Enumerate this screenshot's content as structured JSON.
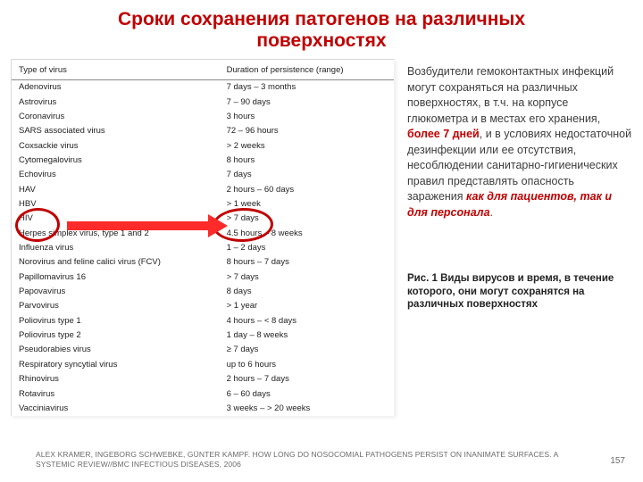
{
  "title": "Сроки сохранения патогенов на различных поверхностях",
  "table": {
    "headers": [
      "Type of virus",
      "Duration of persistence (range)"
    ],
    "rows": [
      [
        "Adenovirus",
        "7 days – 3 months"
      ],
      [
        "Astrovirus",
        "7 – 90 days"
      ],
      [
        "Coronavirus",
        "3 hours"
      ],
      [
        "SARS associated virus",
        "72 – 96 hours"
      ],
      [
        "Coxsackie virus",
        "> 2 weeks"
      ],
      [
        "Cytomegalovirus",
        "8 hours"
      ],
      [
        "Echovirus",
        "7 days"
      ],
      [
        "HAV",
        "2 hours – 60 days"
      ],
      [
        "HBV",
        "> 1 week"
      ],
      [
        "HIV",
        "> 7 days"
      ],
      [
        "Herpes simplex virus, type 1 and 2",
        "4.5 hours – 8 weeks"
      ],
      [
        "Influenza virus",
        "1 – 2 days"
      ],
      [
        "Norovirus and feline calici virus (FCV)",
        "8 hours – 7 days"
      ],
      [
        "Papillomavirus 16",
        "> 7 days"
      ],
      [
        "Papovavirus",
        "8 days"
      ],
      [
        "Parvovirus",
        "> 1 year"
      ],
      [
        "Poliovirus type 1",
        "4 hours – < 8 days"
      ],
      [
        "Poliovirus type 2",
        "1 day – 8 weeks"
      ],
      [
        "Pseudorabies virus",
        "≥ 7 days"
      ],
      [
        "Respiratory syncytial virus",
        "up to 6 hours"
      ],
      [
        "Rhinovirus",
        "2 hours – 7 days"
      ],
      [
        "Rotavirus",
        "6 – 60 days"
      ],
      [
        "Vacciniavirus",
        "3 weeks – > 20 weeks"
      ]
    ]
  },
  "highlight_rows": [
    8,
    9
  ],
  "body_text": {
    "part1": "Возбудители гемоконтактных инфекций могут сохраняться на различных поверхностях, в т.ч. на корпусе глюкометра и в местах его хранения, ",
    "em1": "более 7 дней",
    "part2": ", и в условиях недостаточной дезинфекции или ее отсутствия, несоблюдении санитарно-гигиенических правил  представлять опасность заражения ",
    "em2": "как для пациентов, так и для персонала",
    "part3": "."
  },
  "caption": "Рис. 1 Виды вирусов и время, в течение которого, они могут сохранятся на различных поверхностях",
  "citation": "ALEX KRAMER, INGEBORG SCHWEBKE, GÜNTER KAMPF. HOW LONG DO NOSOCOMIAL PATHOGENS PERSIST ON INANIMATE SURFACES. A SYSTEMIC REVIEW//BMC INFECTIOUS DISEASES, 2006",
  "page_number": "157",
  "colors": {
    "title": "#c00000",
    "emphasis": "#c00000",
    "arrow": "#ff2a2a",
    "body_text": "#3d3d3d",
    "muted": "#6b6b6b"
  }
}
